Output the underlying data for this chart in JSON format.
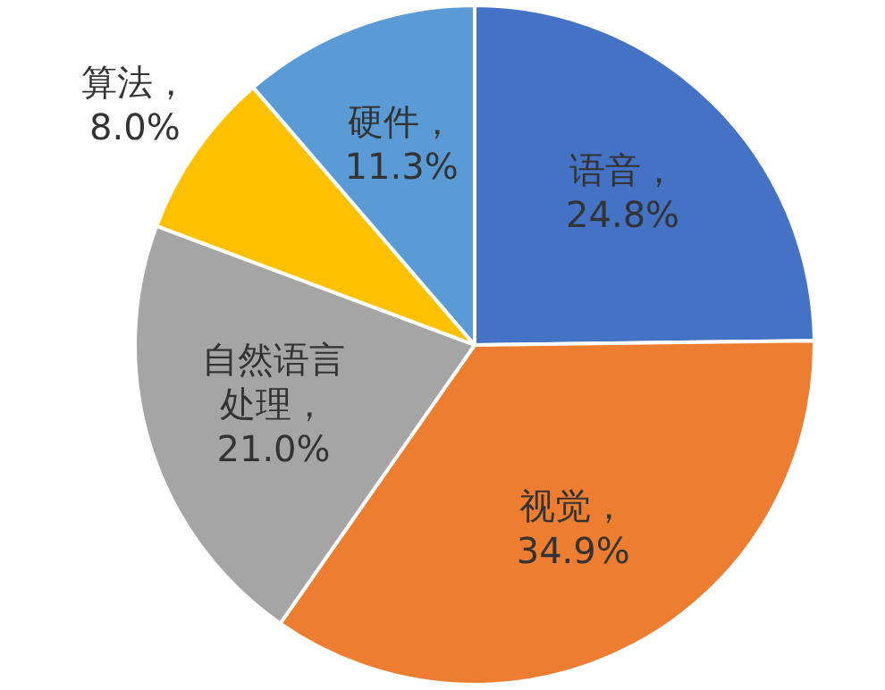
{
  "chart_data": {
    "type": "pie",
    "categories": [
      "语音",
      "视觉",
      "自然语言处理",
      "算法",
      "硬件"
    ],
    "values": [
      24.8,
      34.9,
      21.0,
      8.0,
      11.3
    ],
    "colors": [
      "#4472c4",
      "#ed7d31",
      "#a5a5a5",
      "#ffc000",
      "#5b9bd5"
    ],
    "value_labels": [
      "，24.8%",
      "，34.9%",
      "，21.0%",
      "，8.0%",
      "，11.3%"
    ],
    "legend": false
  }
}
